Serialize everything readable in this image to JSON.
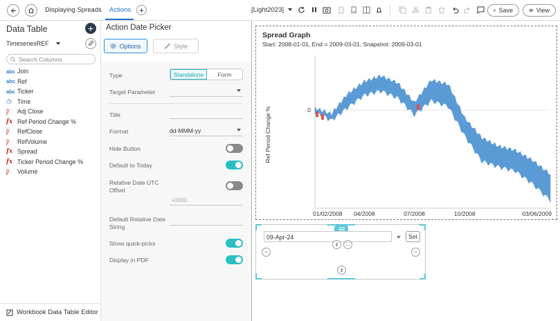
{
  "topbar": {
    "tabs": [
      {
        "label": "Displaying Spreads"
      },
      {
        "label": "Actions"
      }
    ],
    "theme": "[Light2023]",
    "save_label": "Save",
    "view_label": "View"
  },
  "left_panel": {
    "title": "Data Table",
    "datasource": "TimeseriesREF",
    "search_placeholder": "Search Columns",
    "columns": [
      {
        "icon": "text-type-icon",
        "glyph": "abc",
        "label": "Join"
      },
      {
        "icon": "text-type-icon",
        "glyph": "abc",
        "label": "Ref"
      },
      {
        "icon": "text-type-icon",
        "glyph": "abc",
        "label": "Ticker"
      },
      {
        "icon": "clock-icon",
        "glyph": "◷",
        "label": "Time"
      },
      {
        "icon": "numeric-type-icon",
        "glyph": "ʃ/",
        "label": "Adj Close"
      },
      {
        "icon": "calculated-icon",
        "glyph": "fx",
        "label": "Ref Period Change %"
      },
      {
        "icon": "numeric-type-icon",
        "glyph": "ʃ/",
        "label": "RefClose"
      },
      {
        "icon": "numeric-type-icon",
        "glyph": "ʃ/",
        "label": "RefVolume"
      },
      {
        "icon": "calculated-icon",
        "glyph": "fx",
        "label": "Spread"
      },
      {
        "icon": "calculated-icon",
        "glyph": "fx",
        "label": "Ticker Period Change %"
      },
      {
        "icon": "numeric-type-icon",
        "glyph": "ʃ/",
        "label": "Volume"
      }
    ],
    "footer": "Workbook Data Table Editor"
  },
  "settings": {
    "title": "Action Date Picker",
    "options_label": "Options",
    "style_label": "Style",
    "type_label": "Type",
    "type_options": [
      "Standalone",
      "Form"
    ],
    "type_selected": "Standalone",
    "target_parameter_label": "Target Parameter",
    "target_parameter_value": "",
    "title_label": "Title",
    "format_label": "Format",
    "format_value": "dd-MMM-yy",
    "hide_button_label": "Hide Button",
    "hide_button_on": false,
    "default_today_label": "Default to Today",
    "default_today_on": true,
    "utc_offset_label": "Relative Date UTC Offset",
    "utc_offset_on": false,
    "utc_offset_value": "+0000",
    "default_relative_label": "Default Relative Date String",
    "quick_picks_label": "Show quick-picks",
    "quick_picks_on": true,
    "display_pdf_label": "Display in PDF",
    "display_pdf_on": true
  },
  "graph": {
    "title": "Spread Graph",
    "subtitle": "Start: 2008-01-01, End = 2009-03-01, Snapshot: 2009-03-01",
    "ylabel": "Ref Period Change %",
    "x_ticks": [
      "01/02/2008",
      "04/2008",
      "07/2008",
      "10/2008",
      "03/06/2009"
    ],
    "y_tick": "0",
    "band_color": "#5b9bd5",
    "negative_color": "#d9534f"
  },
  "chart_data": {
    "type": "area",
    "title": "Spread Graph",
    "subtitle": "Start: 2008-01-01, End = 2009-03-01, Snapshot: 2009-03-01",
    "ylabel": "Ref Period Change %",
    "x": [
      "2008-01-02",
      "2008-02-01",
      "2008-03-01",
      "2008-04-01",
      "2008-05-01",
      "2008-06-01",
      "2008-07-01",
      "2008-08-01",
      "2008-09-01",
      "2008-10-01",
      "2008-11-01",
      "2008-12-01",
      "2009-01-01",
      "2009-02-01",
      "2009-03-06"
    ],
    "series": [
      {
        "values": [
          2,
          -6,
          22,
          40,
          48,
          38,
          10,
          42,
          36,
          -12,
          -40,
          -52,
          -58,
          -72,
          -92
        ]
      },
      {
        "values": [
          -2,
          -14,
          4,
          22,
          28,
          18,
          -6,
          14,
          6,
          -36,
          -72,
          -80,
          -86,
          -104,
          -128
        ]
      }
    ],
    "ylim": [
      -140,
      70
    ]
  },
  "picker": {
    "date_value": "09-Apr-24",
    "set_label": "Set"
  }
}
